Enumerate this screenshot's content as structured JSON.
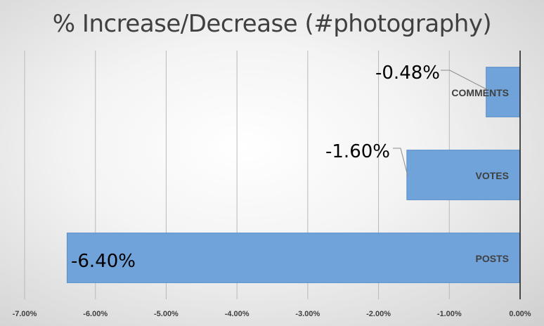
{
  "chart_data": {
    "type": "bar",
    "orientation": "horizontal",
    "title": "% Increase/Decrease (#photography)",
    "xlabel": "",
    "ylabel": "",
    "categories": [
      "COMMENTS",
      "VOTES",
      "POSTS"
    ],
    "values": [
      -0.48,
      -1.6,
      -6.4
    ],
    "data_labels": [
      "-0.48%",
      "-1.60%",
      "-6.40%"
    ],
    "xlim": [
      -7.0,
      0.0
    ],
    "x_ticks": [
      -7,
      -6,
      -5,
      -4,
      -3,
      -2,
      -1,
      0
    ],
    "x_tick_labels": [
      "-7.00%",
      "-6.00%",
      "-5.00%",
      "-4.00%",
      "-3.00%",
      "-2.00%",
      "-1.00%",
      "0.00%"
    ],
    "grid": "vertical",
    "legend": "none",
    "bar_color": "#6fa3d9",
    "bar_edge_color": "#5b8fc9"
  }
}
